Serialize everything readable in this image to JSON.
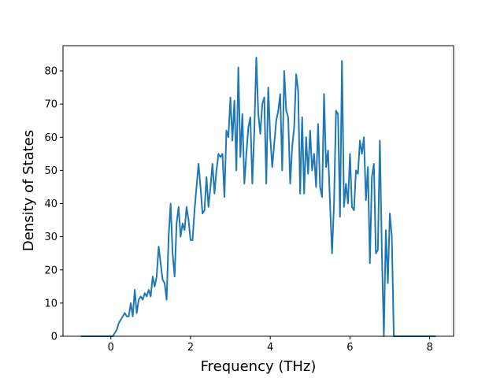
{
  "chart_data": {
    "type": "line",
    "xlabel": "Frequency (THz)",
    "ylabel": "Density of States",
    "xlim": [
      -1.2,
      8.6
    ],
    "ylim": [
      0,
      87.6
    ],
    "xticks": [
      0,
      2,
      4,
      6,
      8
    ],
    "yticks": [
      0,
      10,
      20,
      30,
      40,
      50,
      60,
      70,
      80
    ],
    "grid": false,
    "x": [
      -0.75,
      0,
      0.05,
      0.1,
      0.15,
      0.2,
      0.25,
      0.3,
      0.35,
      0.4,
      0.45,
      0.5,
      0.55,
      0.6,
      0.65,
      0.7,
      0.75,
      0.8,
      0.85,
      0.9,
      0.95,
      1,
      1.05,
      1.1,
      1.15,
      1.2,
      1.25,
      1.3,
      1.35,
      1.4,
      1.45,
      1.5,
      1.55,
      1.6,
      1.65,
      1.7,
      1.75,
      1.8,
      1.85,
      1.9,
      1.95,
      2,
      2.05,
      2.1,
      2.15,
      2.2,
      2.25,
      2.3,
      2.35,
      2.4,
      2.45,
      2.5,
      2.55,
      2.6,
      2.65,
      2.7,
      2.75,
      2.8,
      2.85,
      2.9,
      2.95,
      3,
      3.05,
      3.1,
      3.15,
      3.2,
      3.25,
      3.3,
      3.35,
      3.4,
      3.45,
      3.5,
      3.55,
      3.6,
      3.65,
      3.7,
      3.75,
      3.8,
      3.85,
      3.9,
      3.95,
      4,
      4.05,
      4.1,
      4.15,
      4.2,
      4.25,
      4.3,
      4.35,
      4.4,
      4.45,
      4.5,
      4.55,
      4.6,
      4.65,
      4.7,
      4.75,
      4.8,
      4.85,
      4.9,
      4.95,
      5,
      5.05,
      5.1,
      5.15,
      5.2,
      5.25,
      5.3,
      5.35,
      5.4,
      5.45,
      5.5,
      5.55,
      5.6,
      5.65,
      5.7,
      5.75,
      5.8,
      5.85,
      5.9,
      5.95,
      6,
      6.05,
      6.1,
      6.15,
      6.2,
      6.25,
      6.3,
      6.35,
      6.4,
      6.45,
      6.5,
      6.55,
      6.6,
      6.65,
      6.7,
      6.75,
      6.8,
      6.85,
      6.9,
      6.95,
      7,
      7.05,
      7.1,
      8.15
    ],
    "series": [
      {
        "color": "#1f77b4",
        "values": [
          0,
          0,
          0,
          1,
          2,
          4,
          5,
          6,
          7,
          6,
          6,
          10,
          6,
          14,
          7,
          11,
          12,
          11,
          13,
          12,
          14,
          12,
          18,
          15,
          18,
          27,
          22,
          17,
          16,
          11,
          30,
          40,
          25,
          18,
          34,
          39,
          30,
          34,
          32,
          39,
          35,
          29,
          29,
          38,
          45,
          52,
          45,
          37,
          38,
          48,
          39,
          45,
          52,
          43,
          50,
          55,
          54,
          55,
          42,
          62,
          60,
          72,
          59,
          71,
          50,
          81,
          54,
          67,
          46,
          55,
          63,
          66,
          46,
          62,
          84,
          67,
          61,
          70,
          72,
          46,
          75,
          60,
          51,
          58,
          65,
          68,
          73,
          50,
          80,
          68,
          66,
          46,
          57,
          63,
          79,
          74,
          43,
          66,
          43,
          60,
          49,
          62,
          50,
          55,
          45,
          64,
          45,
          42,
          73,
          51,
          56,
          40,
          25,
          40,
          68,
          67,
          36,
          83,
          39,
          46,
          40,
          55,
          39,
          38,
          50,
          49,
          59,
          55,
          60,
          41,
          51,
          22,
          48,
          52,
          25,
          26,
          59,
          26,
          0,
          32,
          16,
          37,
          30,
          0,
          0
        ]
      }
    ]
  }
}
